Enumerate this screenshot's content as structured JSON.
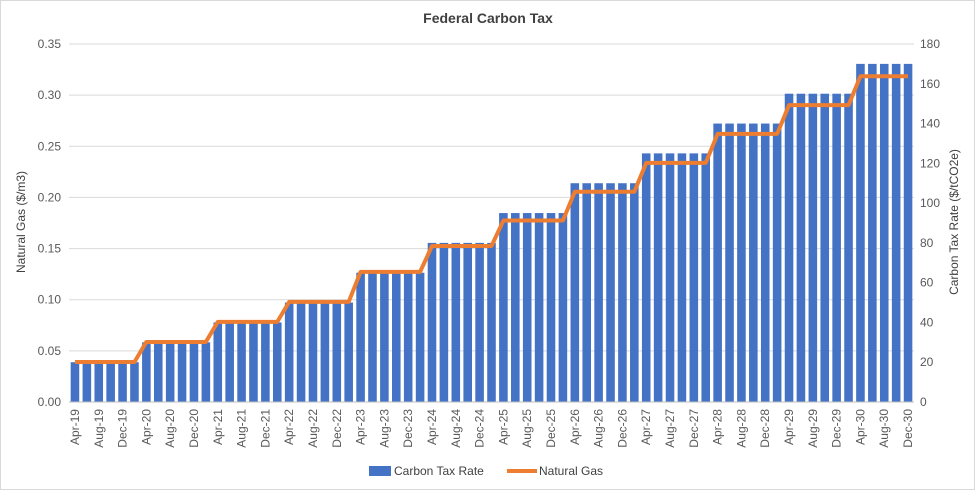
{
  "chart_data": {
    "type": "bar",
    "title": "Federal Carbon Tax",
    "y_left_label": "Natural Gas ($/m3)",
    "y_right_label": "Carbon Tax Rate ($/tCO2e)",
    "y_left_range": [
      0,
      0.35
    ],
    "y_right_range": [
      0,
      180
    ],
    "y_left_ticks": [
      "0.00",
      "0.05",
      "0.10",
      "0.15",
      "0.20",
      "0.25",
      "0.30",
      "0.35"
    ],
    "y_right_ticks": [
      "0",
      "20",
      "40",
      "60",
      "80",
      "100",
      "120",
      "140",
      "160",
      "180"
    ],
    "grid": true,
    "legend_position": "bottom",
    "categories": [
      "Apr-19",
      "Jun-19",
      "Aug-19",
      "Oct-19",
      "Dec-19",
      "Feb-20",
      "Apr-20",
      "Jun-20",
      "Aug-20",
      "Oct-20",
      "Dec-20",
      "Feb-21",
      "Apr-21",
      "Jun-21",
      "Aug-21",
      "Oct-21",
      "Dec-21",
      "Feb-22",
      "Apr-22",
      "Jun-22",
      "Aug-22",
      "Oct-22",
      "Dec-22",
      "Feb-23",
      "Apr-23",
      "Jun-23",
      "Aug-23",
      "Oct-23",
      "Dec-23",
      "Feb-24",
      "Apr-24",
      "Jun-24",
      "Aug-24",
      "Oct-24",
      "Dec-24",
      "Feb-25",
      "Apr-25",
      "Jun-25",
      "Aug-25",
      "Oct-25",
      "Dec-25",
      "Feb-26",
      "Apr-26",
      "Jun-26",
      "Aug-26",
      "Oct-26",
      "Dec-26",
      "Feb-27",
      "Apr-27",
      "Jun-27",
      "Aug-27",
      "Oct-27",
      "Dec-27",
      "Feb-28",
      "Apr-28",
      "Jun-28",
      "Aug-28",
      "Oct-28",
      "Dec-28",
      "Feb-29",
      "Apr-29",
      "Jun-29",
      "Aug-29",
      "Oct-29",
      "Dec-29",
      "Feb-30",
      "Apr-30",
      "Jun-30",
      "Aug-30",
      "Oct-30",
      "Dec-30"
    ],
    "visible_tick_labels": [
      "Apr-19",
      "Aug-19",
      "Dec-19",
      "Apr-20",
      "Aug-20",
      "Dec-20",
      "Apr-21",
      "Aug-21",
      "Dec-21",
      "Apr-22",
      "Aug-22",
      "Dec-22",
      "Apr-23",
      "Aug-23",
      "Dec-23",
      "Apr-24",
      "Aug-24",
      "Dec-24",
      "Apr-25",
      "Aug-25",
      "Dec-25",
      "Apr-26",
      "Aug-26",
      "Dec-26",
      "Apr-27",
      "Aug-27",
      "Dec-27",
      "Apr-28",
      "Aug-28",
      "Dec-28",
      "Apr-29",
      "Aug-29",
      "Dec-29",
      "Apr-30",
      "Aug-30",
      "Dec-30"
    ],
    "series": [
      {
        "name": "Carbon Tax Rate",
        "type": "bar",
        "axis": "right",
        "color": "#4472c4",
        "by_year_apr_to_mar": {
          "2019": 20,
          "2020": 30,
          "2021": 40,
          "2022": 50,
          "2023": 65,
          "2024": 80,
          "2025": 95,
          "2026": 110,
          "2027": 125,
          "2028": 140,
          "2029": 155,
          "2030": 170
        }
      },
      {
        "name": "Natural Gas",
        "type": "line",
        "axis": "left",
        "color": "#ed7d31",
        "by_year_apr_to_mar": {
          "2019": 0.0391,
          "2020": 0.0587,
          "2021": 0.0783,
          "2022": 0.0979,
          "2023": 0.1272,
          "2024": 0.1525,
          "2025": 0.1774,
          "2026": 0.2056,
          "2027": 0.2338,
          "2028": 0.2621,
          "2029": 0.2903,
          "2030": 0.3185
        }
      }
    ]
  }
}
